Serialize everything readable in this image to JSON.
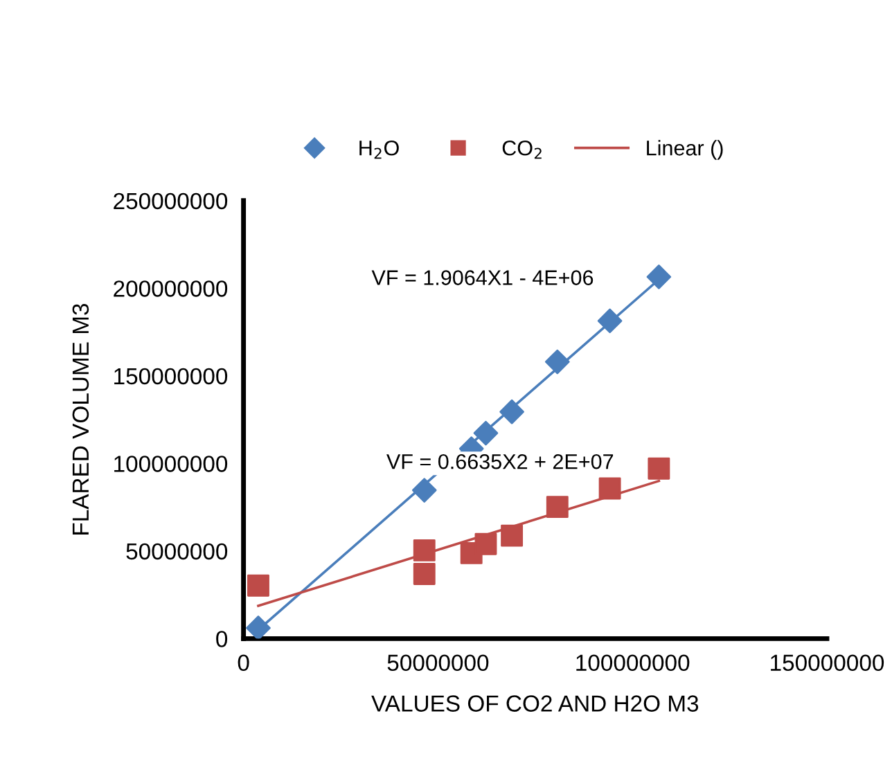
{
  "chart_data": {
    "type": "scatter",
    "xlabel": "VALUES OF CO2 AND H2O M3",
    "ylabel": "FLARED VOLUME M3",
    "xlim": [
      0,
      150000000
    ],
    "xticks": [
      0,
      50000000,
      100000000,
      150000000
    ],
    "ylim": [
      0,
      250000000
    ],
    "yticks": [
      0,
      50000000,
      100000000,
      150000000,
      200000000,
      250000000
    ],
    "grid": false,
    "legend": "top",
    "series": [
      {
        "name": "H$_{2}$O",
        "marker": "diamond",
        "color": "#4a7ebb",
        "x": [
          3800000,
          46500000,
          58600000,
          62300000,
          69000000,
          80700000,
          94200000,
          106800000
        ],
        "values": [
          6100000,
          84700000,
          108400000,
          117300000,
          129500000,
          158000000,
          181400000,
          206500000
        ]
      },
      {
        "name": "CO$_{2}$",
        "marker": "square",
        "color": "#be4b48",
        "x": [
          3800000,
          46500000,
          46500000,
          58600000,
          62300000,
          69000000,
          80700000,
          94200000,
          106800000
        ],
        "values": [
          30300000,
          50400000,
          36900000,
          48800000,
          54000000,
          58800000,
          75200000,
          85700000,
          97100000
        ]
      },
      {
        "type": "line",
        "marker": "none",
        "color": "#4a7ebb",
        "x": [
          3800000,
          106800000
        ],
        "values": [
          5000000,
          205000000
        ]
      },
      {
        "name": "Linear ()",
        "type": "line",
        "marker": "none",
        "color": "#be4b48",
        "x": [
          3800000,
          106800000
        ],
        "values": [
          18700000,
          90000000
        ]
      }
    ],
    "annotations": [
      "VF = 1.9064X1 - 4E+06",
      "VF = 0.6635X2 + 2E+07"
    ]
  }
}
